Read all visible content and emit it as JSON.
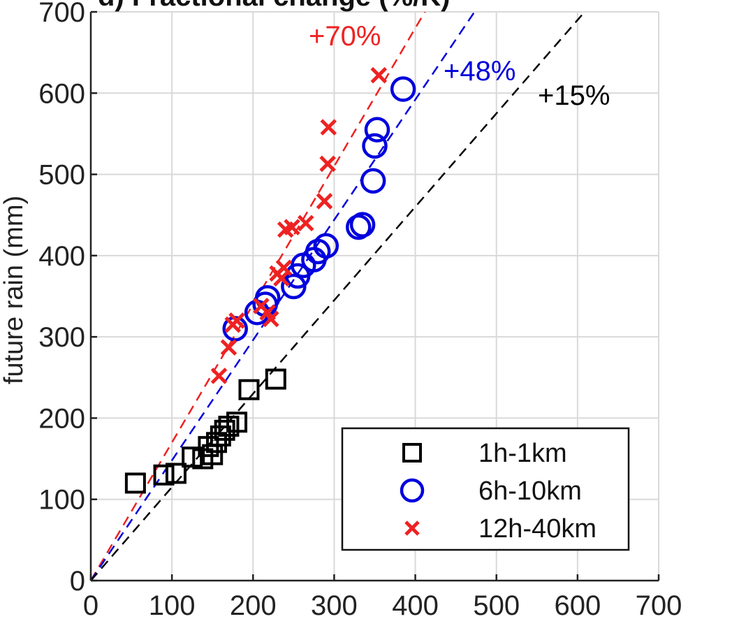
{
  "chart_data": {
    "type": "scatter",
    "title": "d) Fractional change (%/K)",
    "xlabel": "",
    "ylabel": "future rain (mm)",
    "xlim": [
      0,
      700
    ],
    "ylim": [
      0,
      700
    ],
    "xticks": [
      "0",
      "100",
      "200",
      "300",
      "400",
      "500",
      "600",
      "700"
    ],
    "yticks": [
      "0",
      "100",
      "200",
      "300",
      "400",
      "500",
      "600",
      "700"
    ],
    "grid": true,
    "legend_position": "bottom-right",
    "colors": {
      "1h-1km": "#000000",
      "6h-10km": "#0000dd",
      "12h-40km": "#ee2222"
    },
    "series": [
      {
        "name": "1h-1km",
        "marker": "square",
        "color": "#000000",
        "points": [
          [
            55,
            120
          ],
          [
            90,
            130
          ],
          [
            105,
            132
          ],
          [
            125,
            152
          ],
          [
            138,
            150
          ],
          [
            145,
            165
          ],
          [
            150,
            155
          ],
          [
            155,
            170
          ],
          [
            160,
            178
          ],
          [
            165,
            185
          ],
          [
            170,
            190
          ],
          [
            180,
            195
          ],
          [
            195,
            235
          ],
          [
            228,
            248
          ]
        ]
      },
      {
        "name": "6h-10km",
        "marker": "circle",
        "color": "#0000dd",
        "points": [
          [
            178,
            310
          ],
          [
            205,
            330
          ],
          [
            215,
            340
          ],
          [
            218,
            348
          ],
          [
            250,
            362
          ],
          [
            255,
            375
          ],
          [
            262,
            388
          ],
          [
            275,
            395
          ],
          [
            280,
            405
          ],
          [
            290,
            412
          ],
          [
            330,
            435
          ],
          [
            335,
            438
          ],
          [
            348,
            492
          ],
          [
            350,
            535
          ],
          [
            353,
            555
          ],
          [
            385,
            605
          ]
        ]
      },
      {
        "name": "12h-40km",
        "marker": "x",
        "color": "#ee2222",
        "points": [
          [
            158,
            252
          ],
          [
            170,
            287
          ],
          [
            175,
            315
          ],
          [
            180,
            320
          ],
          [
            210,
            338
          ],
          [
            218,
            330
          ],
          [
            222,
            322
          ],
          [
            230,
            378
          ],
          [
            235,
            372
          ],
          [
            238,
            385
          ],
          [
            240,
            432
          ],
          [
            248,
            435
          ],
          [
            265,
            440
          ],
          [
            288,
            467
          ],
          [
            292,
            513
          ],
          [
            293,
            558
          ],
          [
            355,
            622
          ]
        ]
      }
    ],
    "reference_lines": [
      {
        "label": "+70%",
        "slope": 1.7,
        "color": "#ee2222"
      },
      {
        "label": "+48%",
        "slope": 1.48,
        "color": "#0000dd"
      },
      {
        "label": "+15%",
        "slope": 1.15,
        "color": "#000000"
      }
    ]
  }
}
